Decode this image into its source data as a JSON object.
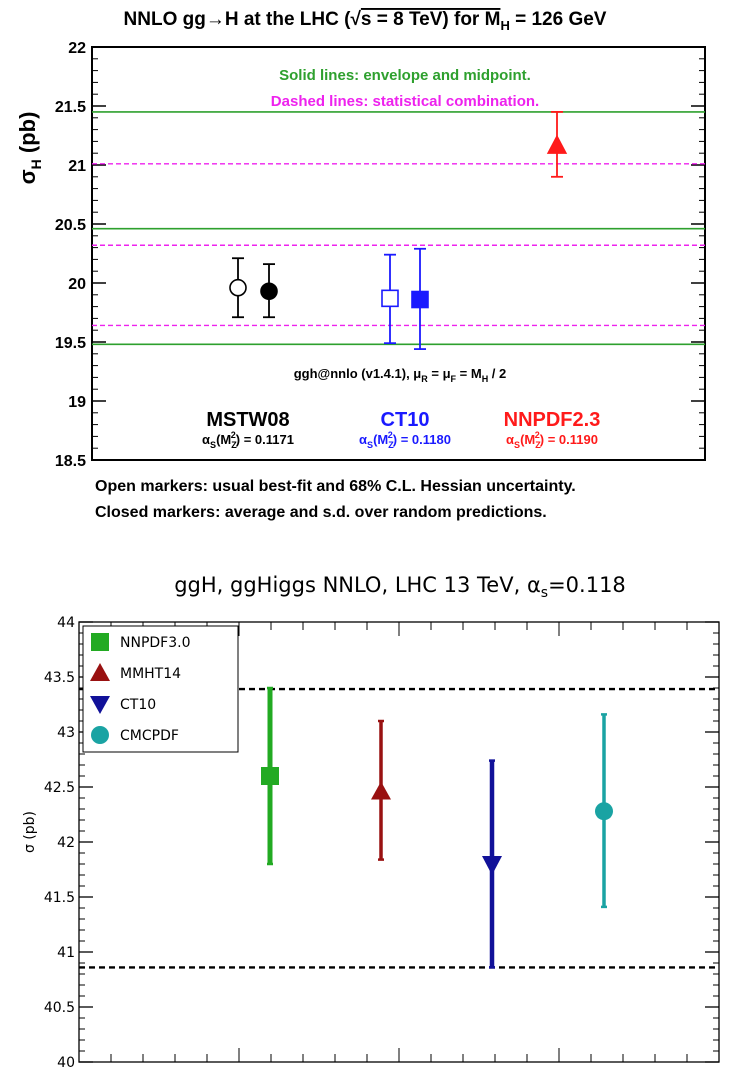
{
  "chart_data": [
    {
      "type": "scatter",
      "title": "NNLO gg→H at the LHC (√s = 8 TeV) for M_H = 126 GeV",
      "title_parts": {
        "main": "NNLO gg→H at the LHC (",
        "sqrt": "√",
        "s_eq": "s = 8 TeV) for M",
        "sub": "H",
        "end": " = 126 GeV"
      },
      "ylabel": "σ_H (pb)",
      "ylabel_parts": {
        "sigma": "σ",
        "sub": "H",
        "unit": " (pb)"
      },
      "ylim": [
        18.5,
        22
      ],
      "yticks": [
        18.5,
        19,
        19.5,
        20,
        20.5,
        21,
        21.5,
        22
      ],
      "ytick_labels": [
        "18.5",
        "19",
        "19.5",
        "20",
        "20.5",
        "21",
        "21.5",
        "22"
      ],
      "annotations": {
        "solid": "Solid lines: envelope and midpoint.",
        "dashed": "Dashed lines: statistical combination.",
        "code_parts": {
          "a": "ggh@nnlo (v1.4.1), μ",
          "r": "R",
          "b": " = μ",
          "f": "F",
          "c": " = M",
          "h": "H",
          "d": " / 2"
        }
      },
      "groups": [
        {
          "name": "MSTW08",
          "alpha_value": "0.1171",
          "color": "#000000"
        },
        {
          "name": "CT10",
          "alpha_value": "0.1180",
          "color": "#1a1aff"
        },
        {
          "name": "NNPDF2.3",
          "alpha_value": "0.1190",
          "color": "#ff1a1a"
        }
      ],
      "alpha_parts": {
        "a": "α",
        "s": "S",
        "m": "(M",
        "z": "Z",
        "two": "2",
        "close": ") = "
      },
      "points": [
        {
          "label": "MSTW08 open",
          "group": 0,
          "marker": "circle",
          "filled": false,
          "y": 19.96,
          "lo": 19.71,
          "hi": 20.21
        },
        {
          "label": "MSTW08 closed",
          "group": 0,
          "marker": "circle",
          "filled": true,
          "y": 19.93,
          "lo": 19.71,
          "hi": 20.16
        },
        {
          "label": "CT10 open",
          "group": 1,
          "marker": "square",
          "filled": false,
          "y": 19.87,
          "lo": 19.49,
          "hi": 20.24
        },
        {
          "label": "CT10 closed",
          "group": 1,
          "marker": "square",
          "filled": true,
          "y": 19.86,
          "lo": 19.44,
          "hi": 20.29
        },
        {
          "label": "NNPDF2.3 closed",
          "group": 2,
          "marker": "triangle-up",
          "filled": true,
          "y": 21.16,
          "lo": 20.9,
          "hi": 21.45
        }
      ],
      "lines": {
        "solid": {
          "color": "#2ea02e",
          "values": [
            21.45,
            20.46,
            19.48
          ]
        },
        "dashed": {
          "color": "#ee22ee",
          "values": [
            21.01,
            20.32,
            19.64
          ]
        }
      },
      "notes": [
        "Open markers: usual best-fit and 68% C.L. Hessian uncertainty.",
        "Closed markers: average and s.d. over random predictions."
      ]
    },
    {
      "type": "scatter",
      "title_parts": {
        "main": "ggH, ggHiggs NNLO, LHC 13 TeV, ",
        "alpha": "α",
        "sub": "s",
        "end": "=0.118"
      },
      "ylabel": "σ (pb)",
      "ylim": [
        40,
        44
      ],
      "yticks": [
        40,
        40.5,
        41,
        41.5,
        42,
        42.5,
        43,
        43.5,
        44
      ],
      "ytick_labels": [
        "40",
        "40.5",
        "41",
        "41.5",
        "42",
        "42.5",
        "43",
        "43.5",
        "44"
      ],
      "series": [
        {
          "name": "NNPDF3.0",
          "marker": "square",
          "color": "#22aa22",
          "y": 42.6,
          "lo": 41.8,
          "hi": 43.4
        },
        {
          "name": "MMHT14",
          "marker": "triangle-up",
          "color": "#991111",
          "y": 42.45,
          "lo": 41.84,
          "hi": 43.1
        },
        {
          "name": "CT10",
          "marker": "triangle-down",
          "color": "#111199",
          "y": 41.8,
          "lo": 40.86,
          "hi": 42.74
        },
        {
          "name": "CMCPDF",
          "marker": "circle",
          "color": "#1aa3a3",
          "y": 42.28,
          "lo": 41.41,
          "hi": 43.16
        }
      ],
      "hlines": [
        43.39,
        40.86
      ],
      "legend_position": "top-left"
    }
  ]
}
